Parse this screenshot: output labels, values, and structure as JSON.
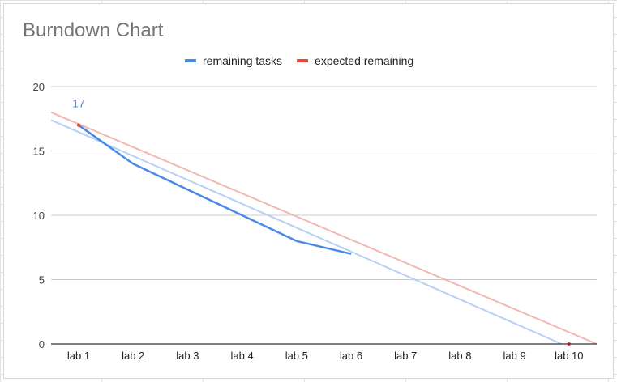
{
  "chart_data": {
    "type": "line",
    "title": "Burndown Chart",
    "xlabel": "",
    "ylabel": "",
    "categories": [
      "lab 1",
      "lab 2",
      "lab 3",
      "lab 4",
      "lab 5",
      "lab 6",
      "lab 7",
      "lab 8",
      "lab 9",
      "lab 10"
    ],
    "ylim": [
      0,
      20
    ],
    "yticks": [
      "0",
      "5",
      "10",
      "15",
      "20"
    ],
    "grid": true,
    "legend_position": "top",
    "series": [
      {
        "name": "remaining tasks",
        "color": "#4a89e8",
        "values": [
          17,
          14,
          12,
          10,
          8,
          7,
          null,
          null,
          null,
          null
        ],
        "data_labels": [
          "17",
          "",
          "",
          "",
          "",
          "",
          "",
          "",
          "",
          ""
        ],
        "trendline": {
          "color": "#b7cff5",
          "values_at_ends": [
            17.4,
            -1.2
          ]
        }
      },
      {
        "name": "expected remaining",
        "color": "#e8483c",
        "values": [
          17,
          null,
          null,
          null,
          null,
          null,
          null,
          null,
          null,
          0
        ],
        "trendline": {
          "color": "#f4b6b0",
          "values_at_ends": [
            18.0,
            0
          ]
        }
      }
    ]
  }
}
